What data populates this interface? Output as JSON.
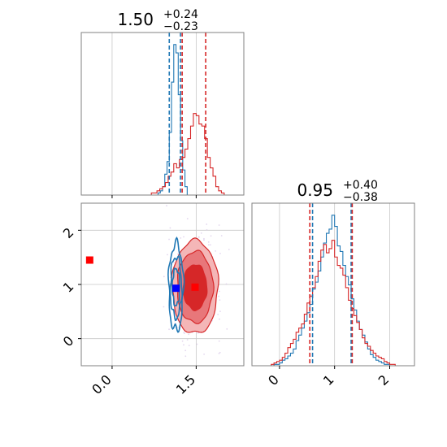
{
  "colors": {
    "red": "#d62728",
    "blue": "#1f77b4",
    "red_fill_light": "#f4b6b7",
    "red_fill_mid": "#e8777a",
    "grid": "#c8c8c8",
    "frame": "#808080",
    "marker_red": "#ff0000",
    "marker_blue": "#0000ff"
  },
  "chart_data": [
    {
      "type": "histogram",
      "panel": "top-left",
      "parameter_index": 0,
      "title": {
        "median": "1.50",
        "plus": "+0.24",
        "minus": "−0.23"
      },
      "xlim": [
        -0.55,
        2.35
      ],
      "x_ticks": [
        0.0,
        1.5
      ],
      "grid": true,
      "quantile_lines": {
        "blue": [
          1.02,
          1.22
        ],
        "red": [
          1.25,
          1.67
        ]
      },
      "series": [
        {
          "color": "blue",
          "bin_edges": [
            0.82,
            0.86,
            0.9,
            0.94,
            0.98,
            1.02,
            1.06,
            1.1,
            1.14,
            1.18,
            1.22,
            1.26,
            1.3,
            1.34
          ],
          "counts": [
            1,
            2,
            4,
            10,
            16,
            30,
            54,
            72,
            68,
            48,
            26,
            12,
            4
          ]
        },
        {
          "color": "red",
          "bin_edges": [
            0.7,
            0.75,
            0.8,
            0.85,
            0.9,
            0.95,
            1.0,
            1.05,
            1.1,
            1.15,
            1.2,
            1.25,
            1.3,
            1.35,
            1.4,
            1.45,
            1.5,
            1.55,
            1.6,
            1.65,
            1.7,
            1.75,
            1.8,
            1.85,
            1.9,
            1.95,
            2.0
          ],
          "counts": [
            1,
            1,
            2,
            3,
            4,
            6,
            9,
            11,
            15,
            13,
            17,
            18,
            22,
            27,
            33,
            39,
            38,
            34,
            33,
            27,
            18,
            13,
            9,
            4,
            2,
            1
          ]
        }
      ]
    },
    {
      "type": "histogram",
      "panel": "bottom-right",
      "parameter_index": 1,
      "title": {
        "median": "0.95",
        "plus": "+0.40",
        "minus": "−0.38"
      },
      "xlim": [
        -0.5,
        2.45
      ],
      "x_ticks": [
        0,
        1,
        2
      ],
      "x_tick_labels": [
        "0",
        "1",
        "2"
      ],
      "grid": true,
      "quantile_lines": {
        "blue": [
          0.6,
          1.3
        ],
        "red": [
          0.55,
          1.32
        ]
      },
      "series": [
        {
          "color": "blue",
          "bin_edges": [
            -0.1,
            -0.05,
            0.0,
            0.05,
            0.1,
            0.15,
            0.2,
            0.25,
            0.3,
            0.35,
            0.4,
            0.45,
            0.5,
            0.55,
            0.6,
            0.65,
            0.7,
            0.75,
            0.8,
            0.85,
            0.9,
            0.95,
            1.0,
            1.05,
            1.1,
            1.15,
            1.2,
            1.25,
            1.3,
            1.35,
            1.4,
            1.45,
            1.5,
            1.55,
            1.6,
            1.65,
            1.7,
            1.75,
            1.8,
            1.85,
            1.9,
            1.95,
            2.0
          ],
          "counts": [
            1,
            1,
            2,
            4,
            5,
            7,
            9,
            12,
            18,
            22,
            27,
            32,
            38,
            44,
            55,
            60,
            68,
            78,
            88,
            95,
            98,
            108,
            100,
            86,
            82,
            72,
            64,
            58,
            48,
            40,
            32,
            26,
            22,
            17,
            12,
            8,
            6,
            4,
            3,
            2,
            1,
            1
          ]
        },
        {
          "color": "red",
          "bin_edges": [
            -0.15,
            -0.1,
            -0.05,
            0.0,
            0.05,
            0.1,
            0.15,
            0.2,
            0.25,
            0.3,
            0.35,
            0.4,
            0.45,
            0.5,
            0.55,
            0.6,
            0.65,
            0.7,
            0.75,
            0.8,
            0.85,
            0.9,
            0.95,
            1.0,
            1.05,
            1.1,
            1.15,
            1.2,
            1.25,
            1.3,
            1.35,
            1.4,
            1.45,
            1.5,
            1.55,
            1.6,
            1.65,
            1.7,
            1.75,
            1.8,
            1.85,
            1.9,
            1.95,
            2.0,
            2.05,
            2.1
          ],
          "counts": [
            1,
            2,
            3,
            4,
            6,
            9,
            13,
            16,
            19,
            24,
            27,
            30,
            37,
            45,
            50,
            56,
            64,
            75,
            83,
            87,
            81,
            84,
            90,
            78,
            72,
            70,
            65,
            56,
            47,
            41,
            36,
            31,
            26,
            20,
            16,
            14,
            11,
            9,
            7,
            6,
            5,
            3,
            2,
            1,
            1
          ]
        }
      ]
    },
    {
      "type": "contour",
      "panel": "bottom-left",
      "xlim": [
        -0.55,
        2.35
      ],
      "ylim": [
        -0.5,
        2.5
      ],
      "x_ticks": [
        0.0,
        1.5
      ],
      "x_tick_labels": [
        "0.0",
        "1.5"
      ],
      "y_ticks": [
        0,
        1,
        2
      ],
      "y_tick_labels": [
        "0",
        "1",
        "2"
      ],
      "grid": true,
      "series": [
        {
          "color": "red",
          "filled": true,
          "center": [
            1.48,
            0.95
          ],
          "levels": [
            {
              "radius": [
                0.41,
                0.86
              ],
              "shade": "light"
            },
            {
              "radius": [
                0.32,
                0.66
              ],
              "shade": "mid"
            },
            {
              "radius": [
                0.21,
                0.42
              ],
              "shade": "dark"
            }
          ]
        },
        {
          "color": "blue",
          "filled": false,
          "center": [
            1.14,
            0.95
          ],
          "levels": [
            {
              "radius": [
                0.13,
                0.8
              ]
            },
            {
              "radius": [
                0.1,
                0.56
              ]
            },
            {
              "radius": [
                0.065,
                0.34
              ]
            }
          ]
        }
      ],
      "markers": [
        {
          "x": -0.4,
          "y": 1.45,
          "color": "marker_red"
        },
        {
          "x": 1.14,
          "y": 0.93,
          "color": "marker_blue"
        },
        {
          "x": 1.48,
          "y": 0.95,
          "color": "marker_red"
        }
      ]
    }
  ]
}
